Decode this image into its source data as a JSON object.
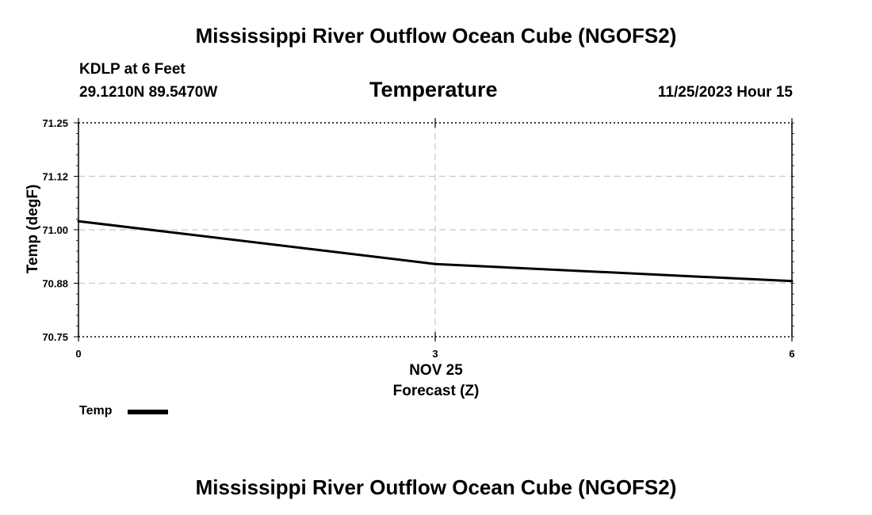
{
  "header": {
    "title": "Mississippi River Outflow Ocean Cube (NGOFS2)",
    "station_line": "KDLP at 6 Feet",
    "coords": "29.1210N  89.5470W",
    "datetime": "11/25/2023 Hour 15"
  },
  "footer": {
    "title": "Mississippi River Outflow Ocean Cube (NGOFS2)"
  },
  "chart_data": {
    "type": "line",
    "title": "Temperature",
    "xlabel": "Forecast (Z)",
    "ylabel": "Temp (degF)",
    "x_date_label": "NOV 25",
    "xlim": [
      0,
      6
    ],
    "ylim": [
      70.75,
      71.25
    ],
    "x_ticks": [
      0,
      3,
      6
    ],
    "x_tick_labels": [
      "0",
      "3",
      "6"
    ],
    "y_ticks": [
      70.75,
      70.875,
      71.0,
      71.125,
      71.25
    ],
    "y_tick_labels": [
      "70.75",
      "70.88",
      "71.00",
      "71.12",
      "71.25"
    ],
    "grid": true,
    "series": [
      {
        "name": "Temp",
        "color": "#000000",
        "x": [
          0,
          3,
          6
        ],
        "values": [
          71.02,
          70.92,
          70.88
        ]
      }
    ],
    "legend": {
      "label": "Temp",
      "placement": "bottom-left"
    }
  }
}
